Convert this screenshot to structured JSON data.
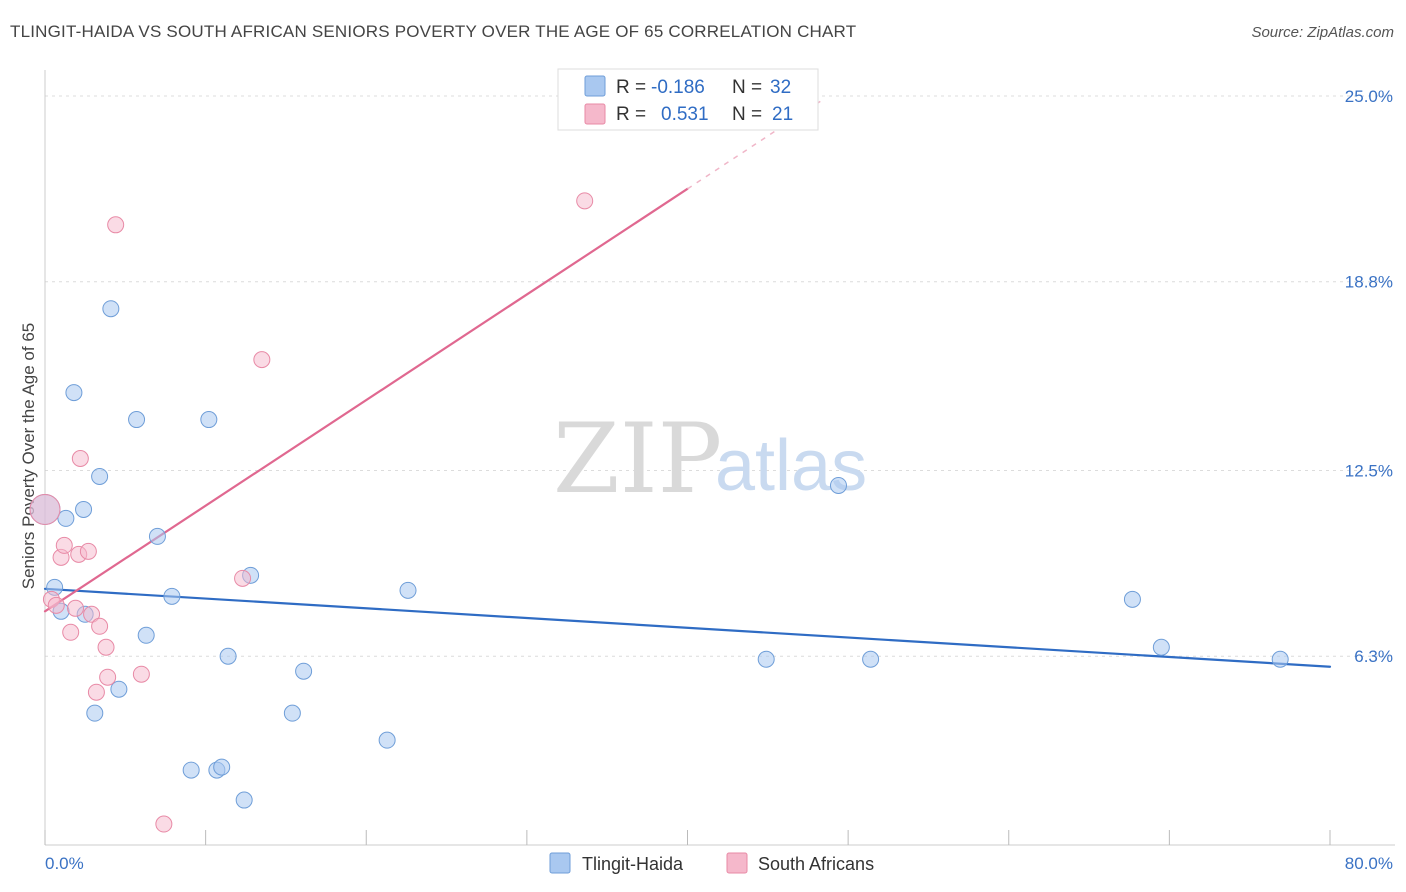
{
  "header": {
    "title": "TLINGIT-HAIDA VS SOUTH AFRICAN SENIORS POVERTY OVER THE AGE OF 65 CORRELATION CHART",
    "source": "Source: ZipAtlas.com"
  },
  "watermark": {
    "zip": "ZIP",
    "atlas": "atlas"
  },
  "legend": {
    "rows": [
      {
        "r_label": "R =",
        "r_value": "-0.186",
        "n_label": "N =",
        "n_value": "32",
        "color": "#a9c8f0"
      },
      {
        "r_label": "R =",
        "r_value": "0.531",
        "n_label": "N =",
        "n_value": "21",
        "color": "#f5b8cb"
      }
    ]
  },
  "chart_data": {
    "type": "scatter",
    "title": "TLINGIT-HAIDA VS SOUTH AFRICAN SENIORS POVERTY OVER THE AGE OF 65 CORRELATION CHART",
    "xlabel": "",
    "ylabel": "Seniors Poverty Over the Age of 65",
    "xlim": [
      0,
      80
    ],
    "ylim": [
      0,
      25.6
    ],
    "x_tick_labels": [
      "0.0%",
      "80.0%"
    ],
    "y_ticks": [
      6.3,
      12.5,
      18.8,
      25.0
    ],
    "y_tick_labels": [
      "6.3%",
      "12.5%",
      "18.8%",
      "25.0%"
    ],
    "series": [
      {
        "name": "Tlingit-Haida",
        "color": "#a9c8f0",
        "stroke": "#6f9ed8",
        "line_color": "#2f6cc4",
        "trend": {
          "x0": 0,
          "y0": 8.55,
          "x1": 80,
          "y1": 5.95
        },
        "points": [
          {
            "x": 0.0,
            "y": 11.2
          },
          {
            "x": 0.6,
            "y": 8.6
          },
          {
            "x": 1.0,
            "y": 7.8
          },
          {
            "x": 1.3,
            "y": 10.9
          },
          {
            "x": 1.8,
            "y": 15.1
          },
          {
            "x": 2.4,
            "y": 11.2
          },
          {
            "x": 2.5,
            "y": 7.7
          },
          {
            "x": 3.1,
            "y": 4.4
          },
          {
            "x": 3.4,
            "y": 12.3
          },
          {
            "x": 4.1,
            "y": 17.9
          },
          {
            "x": 4.6,
            "y": 5.2
          },
          {
            "x": 5.7,
            "y": 14.2
          },
          {
            "x": 6.3,
            "y": 7.0
          },
          {
            "x": 7.0,
            "y": 10.3
          },
          {
            "x": 7.9,
            "y": 8.3
          },
          {
            "x": 9.1,
            "y": 2.5
          },
          {
            "x": 10.2,
            "y": 14.2
          },
          {
            "x": 10.7,
            "y": 2.5
          },
          {
            "x": 11.0,
            "y": 2.6
          },
          {
            "x": 11.4,
            "y": 6.3
          },
          {
            "x": 12.4,
            "y": 1.5
          },
          {
            "x": 12.8,
            "y": 9.0
          },
          {
            "x": 15.4,
            "y": 4.4
          },
          {
            "x": 16.1,
            "y": 5.8
          },
          {
            "x": 21.3,
            "y": 3.5
          },
          {
            "x": 22.6,
            "y": 8.5
          },
          {
            "x": 44.9,
            "y": 6.2
          },
          {
            "x": 49.4,
            "y": 12.0
          },
          {
            "x": 51.4,
            "y": 6.2
          },
          {
            "x": 67.7,
            "y": 8.2
          },
          {
            "x": 69.5,
            "y": 6.6
          },
          {
            "x": 76.9,
            "y": 6.2
          }
        ]
      },
      {
        "name": "South Africans",
        "color": "#f5b8cb",
        "stroke": "#e88aa6",
        "line_color": "#e06890",
        "trend": {
          "x0": 0,
          "y0": 7.8,
          "x1": 40,
          "y1": 21.9
        },
        "trend_dashed_to": {
          "x": 48.5,
          "y": 24.9
        },
        "points": [
          {
            "x": 0.0,
            "y": 11.2
          },
          {
            "x": 0.4,
            "y": 8.2
          },
          {
            "x": 0.7,
            "y": 8.0
          },
          {
            "x": 1.0,
            "y": 9.6
          },
          {
            "x": 1.2,
            "y": 10.0
          },
          {
            "x": 1.6,
            "y": 7.1
          },
          {
            "x": 1.9,
            "y": 7.9
          },
          {
            "x": 2.1,
            "y": 9.7
          },
          {
            "x": 2.2,
            "y": 12.9
          },
          {
            "x": 2.7,
            "y": 9.8
          },
          {
            "x": 2.9,
            "y": 7.7
          },
          {
            "x": 3.2,
            "y": 5.1
          },
          {
            "x": 3.4,
            "y": 7.3
          },
          {
            "x": 3.8,
            "y": 6.6
          },
          {
            "x": 3.9,
            "y": 5.6
          },
          {
            "x": 4.4,
            "y": 20.7
          },
          {
            "x": 6.0,
            "y": 5.7
          },
          {
            "x": 7.4,
            "y": 0.7
          },
          {
            "x": 12.3,
            "y": 8.9
          },
          {
            "x": 13.5,
            "y": 16.2
          },
          {
            "x": 33.6,
            "y": 21.5
          }
        ]
      }
    ]
  }
}
